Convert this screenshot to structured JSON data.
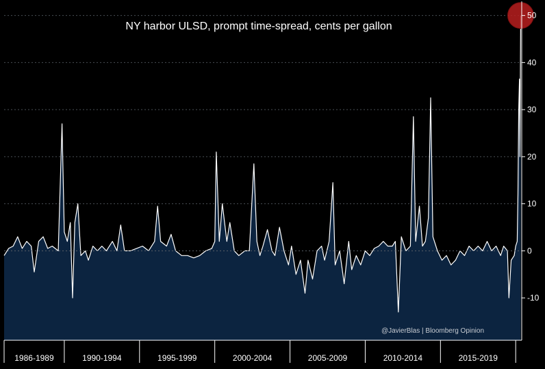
{
  "chart_data": {
    "type": "line",
    "title": "NY harbor ULSD, prompt time-spread, cents per gallon",
    "credit": "@JavierBlas | Bloomberg Opinion",
    "xlabel": "",
    "ylabel": "",
    "ylim": [
      -19,
      53
    ],
    "y_ticks": [
      -10,
      0,
      10,
      20,
      30,
      40,
      50
    ],
    "y_axis_position": "right",
    "x_period_labels": [
      "1986-1989",
      "1990-1994",
      "1995-1999",
      "2000-2004",
      "2005-2009",
      "2010-2014",
      "2015-2019"
    ],
    "x_range": [
      1986,
      2020.4
    ],
    "area_fill": "#0c2440",
    "line_color": "#ffffff",
    "gridlines": true,
    "highlight": {
      "x": 2020.33,
      "y": 50,
      "color": "#b81e1e"
    },
    "series": [
      {
        "values": [
          {
            "x": 1986.0,
            "y": -1
          },
          {
            "x": 1986.3,
            "y": 0.5
          },
          {
            "x": 1986.6,
            "y": 1
          },
          {
            "x": 1986.9,
            "y": 3
          },
          {
            "x": 1987.2,
            "y": 0.5
          },
          {
            "x": 1987.5,
            "y": 2
          },
          {
            "x": 1987.8,
            "y": 1
          },
          {
            "x": 1988.0,
            "y": -4.5
          },
          {
            "x": 1988.3,
            "y": 2
          },
          {
            "x": 1988.6,
            "y": 3
          },
          {
            "x": 1988.9,
            "y": 0.5
          },
          {
            "x": 1989.2,
            "y": 1
          },
          {
            "x": 1989.6,
            "y": 0
          },
          {
            "x": 1989.85,
            "y": 27
          },
          {
            "x": 1990.0,
            "y": 4
          },
          {
            "x": 1990.2,
            "y": 2
          },
          {
            "x": 1990.4,
            "y": 6
          },
          {
            "x": 1990.55,
            "y": -10
          },
          {
            "x": 1990.7,
            "y": 6
          },
          {
            "x": 1990.9,
            "y": 10
          },
          {
            "x": 1991.1,
            "y": -1
          },
          {
            "x": 1991.4,
            "y": 0
          },
          {
            "x": 1991.6,
            "y": -2
          },
          {
            "x": 1991.9,
            "y": 1
          },
          {
            "x": 1992.2,
            "y": 0
          },
          {
            "x": 1992.5,
            "y": 1
          },
          {
            "x": 1992.8,
            "y": 0
          },
          {
            "x": 1993.2,
            "y": 2
          },
          {
            "x": 1993.5,
            "y": 0
          },
          {
            "x": 1993.75,
            "y": 5.5
          },
          {
            "x": 1994.0,
            "y": 0
          },
          {
            "x": 1994.4,
            "y": 0
          },
          {
            "x": 1994.8,
            "y": 0.5
          },
          {
            "x": 1995.2,
            "y": 1
          },
          {
            "x": 1995.6,
            "y": 0
          },
          {
            "x": 1996.0,
            "y": 2
          },
          {
            "x": 1996.2,
            "y": 9.5
          },
          {
            "x": 1996.4,
            "y": 2
          },
          {
            "x": 1996.8,
            "y": 1
          },
          {
            "x": 1997.1,
            "y": 3.5
          },
          {
            "x": 1997.4,
            "y": 0
          },
          {
            "x": 1997.8,
            "y": -1
          },
          {
            "x": 1998.2,
            "y": -1
          },
          {
            "x": 1998.6,
            "y": -1.5
          },
          {
            "x": 1999.0,
            "y": -1
          },
          {
            "x": 1999.4,
            "y": 0
          },
          {
            "x": 1999.8,
            "y": 0.5
          },
          {
            "x": 2000.0,
            "y": 2
          },
          {
            "x": 2000.1,
            "y": 21
          },
          {
            "x": 2000.3,
            "y": 2
          },
          {
            "x": 2000.5,
            "y": 10
          },
          {
            "x": 2000.8,
            "y": 2
          },
          {
            "x": 2001.0,
            "y": 6
          },
          {
            "x": 2001.3,
            "y": 0
          },
          {
            "x": 2001.6,
            "y": -1
          },
          {
            "x": 2002.0,
            "y": 0
          },
          {
            "x": 2002.3,
            "y": 0
          },
          {
            "x": 2002.6,
            "y": 18.5
          },
          {
            "x": 2002.8,
            "y": 2
          },
          {
            "x": 2003.0,
            "y": -1
          },
          {
            "x": 2003.2,
            "y": 1
          },
          {
            "x": 2003.5,
            "y": 4.5
          },
          {
            "x": 2003.8,
            "y": 0
          },
          {
            "x": 2004.0,
            "y": -1
          },
          {
            "x": 2004.3,
            "y": 5
          },
          {
            "x": 2004.6,
            "y": 0
          },
          {
            "x": 2004.9,
            "y": -3
          },
          {
            "x": 2005.1,
            "y": 1
          },
          {
            "x": 2005.4,
            "y": -5
          },
          {
            "x": 2005.7,
            "y": -2
          },
          {
            "x": 2006.0,
            "y": -9
          },
          {
            "x": 2006.2,
            "y": -2
          },
          {
            "x": 2006.5,
            "y": -6
          },
          {
            "x": 2006.8,
            "y": 0
          },
          {
            "x": 2007.1,
            "y": 1
          },
          {
            "x": 2007.3,
            "y": -2
          },
          {
            "x": 2007.6,
            "y": 2
          },
          {
            "x": 2007.85,
            "y": 14.5
          },
          {
            "x": 2008.0,
            "y": -3
          },
          {
            "x": 2008.3,
            "y": 0
          },
          {
            "x": 2008.6,
            "y": -7
          },
          {
            "x": 2008.9,
            "y": 2
          },
          {
            "x": 2009.1,
            "y": -4
          },
          {
            "x": 2009.4,
            "y": -1
          },
          {
            "x": 2009.7,
            "y": -3
          },
          {
            "x": 2010.0,
            "y": 0
          },
          {
            "x": 2010.3,
            "y": -1
          },
          {
            "x": 2010.6,
            "y": 0.5
          },
          {
            "x": 2010.9,
            "y": 1
          },
          {
            "x": 2011.2,
            "y": 2
          },
          {
            "x": 2011.5,
            "y": 1
          },
          {
            "x": 2011.8,
            "y": 1
          },
          {
            "x": 2012.0,
            "y": 2
          },
          {
            "x": 2012.2,
            "y": -13
          },
          {
            "x": 2012.4,
            "y": 3
          },
          {
            "x": 2012.7,
            "y": 0
          },
          {
            "x": 2013.0,
            "y": 1
          },
          {
            "x": 2013.2,
            "y": 28.5
          },
          {
            "x": 2013.35,
            "y": 2
          },
          {
            "x": 2013.6,
            "y": 9.5
          },
          {
            "x": 2013.8,
            "y": 1
          },
          {
            "x": 2014.0,
            "y": 2
          },
          {
            "x": 2014.2,
            "y": 7
          },
          {
            "x": 2014.35,
            "y": 32.5
          },
          {
            "x": 2014.5,
            "y": 3
          },
          {
            "x": 2014.8,
            "y": 0
          },
          {
            "x": 2015.1,
            "y": -2
          },
          {
            "x": 2015.4,
            "y": -1
          },
          {
            "x": 2015.7,
            "y": -3
          },
          {
            "x": 2016.0,
            "y": -2
          },
          {
            "x": 2016.3,
            "y": 0
          },
          {
            "x": 2016.6,
            "y": -1
          },
          {
            "x": 2016.9,
            "y": 1
          },
          {
            "x": 2017.2,
            "y": 0
          },
          {
            "x": 2017.5,
            "y": 1
          },
          {
            "x": 2017.8,
            "y": 0
          },
          {
            "x": 2018.1,
            "y": 2
          },
          {
            "x": 2018.4,
            "y": 0
          },
          {
            "x": 2018.7,
            "y": 1
          },
          {
            "x": 2019.0,
            "y": -1
          },
          {
            "x": 2019.2,
            "y": 1
          },
          {
            "x": 2019.45,
            "y": 0
          },
          {
            "x": 2019.55,
            "y": -10
          },
          {
            "x": 2019.7,
            "y": -2
          },
          {
            "x": 2019.9,
            "y": -1
          },
          {
            "x": 2020.0,
            "y": 1
          },
          {
            "x": 2020.1,
            "y": 2
          },
          {
            "x": 2020.15,
            "y": 12
          },
          {
            "x": 2020.2,
            "y": 30
          },
          {
            "x": 2020.25,
            "y": 36.5
          },
          {
            "x": 2020.28,
            "y": 20
          },
          {
            "x": 2020.33,
            "y": 50
          }
        ]
      }
    ]
  }
}
